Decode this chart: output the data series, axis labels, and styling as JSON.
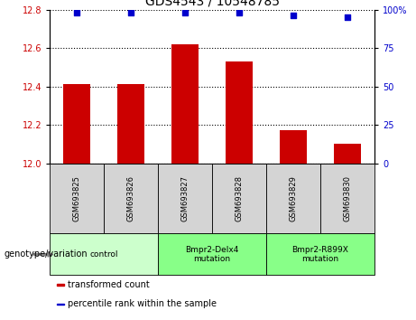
{
  "title": "GDS4543 / 10548785",
  "samples": [
    "GSM693825",
    "GSM693826",
    "GSM693827",
    "GSM693828",
    "GSM693829",
    "GSM693830"
  ],
  "bar_values": [
    12.41,
    12.41,
    12.62,
    12.53,
    12.17,
    12.1
  ],
  "percentile_values": [
    98,
    98,
    98,
    98,
    96,
    95
  ],
  "ylim": [
    12.0,
    12.8
  ],
  "yticks": [
    12.0,
    12.2,
    12.4,
    12.6,
    12.8
  ],
  "right_yticks": [
    0,
    25,
    50,
    75,
    100
  ],
  "right_ylim": [
    0,
    100
  ],
  "bar_color": "#cc0000",
  "dot_color": "#0000cc",
  "group_defs": [
    {
      "start": 0,
      "end": 1,
      "label": "control",
      "color": "#ccffcc"
    },
    {
      "start": 2,
      "end": 3,
      "label": "Bmpr2-Delx4\nmutation",
      "color": "#88ff88"
    },
    {
      "start": 4,
      "end": 5,
      "label": "Bmpr2-R899X\nmutation",
      "color": "#88ff88"
    }
  ],
  "legend_items": [
    {
      "color": "#cc0000",
      "label": "transformed count"
    },
    {
      "color": "#0000cc",
      "label": "percentile rank within the sample"
    }
  ],
  "genotype_label": "genotype/variation",
  "sample_box_color": "#d4d4d4",
  "plot_bg": "#ffffff"
}
